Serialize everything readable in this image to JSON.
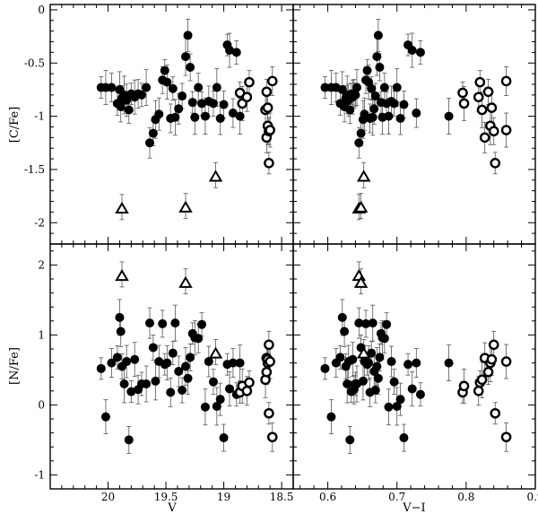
{
  "chart_data": {
    "type": "scatter",
    "layout": "2x2 grid, shared axes",
    "grid": false,
    "panel_labels": {
      "top_left": {
        "ylabel": "[C/Fe]",
        "xlabel": ""
      },
      "top_right": {
        "ylabel": "",
        "xlabel": ""
      },
      "bottom_left": {
        "ylabel": "[N/Fe]",
        "xlabel": "V"
      },
      "bottom_right": {
        "ylabel": "",
        "xlabel": "V−I"
      }
    },
    "axes": {
      "V": {
        "range": [
          20.5,
          18.4
        ],
        "inverted": true,
        "ticks": [
          "20",
          "19.5",
          "19",
          "18.5"
        ],
        "tick_values": [
          20,
          19.5,
          19,
          18.5
        ],
        "minor_step": 0.1
      },
      "VI": {
        "range": [
          0.55,
          0.9
        ],
        "ticks": [
          "0.6",
          "0.7",
          "0.8",
          "0.9"
        ],
        "tick_values": [
          0.6,
          0.7,
          0.8,
          0.9
        ],
        "minor_step": 0.02
      },
      "CFe": {
        "range": [
          -2.2,
          0.05
        ],
        "ticks": [
          "0",
          "-0.5",
          "-1",
          "-1.5",
          "-2"
        ],
        "tick_values": [
          0,
          -0.5,
          -1,
          -1.5,
          -2
        ],
        "minor_step": 0.1
      },
      "NFe": {
        "range": [
          -1.2,
          2.3
        ],
        "ticks": [
          "2",
          "1",
          "0",
          "-1"
        ],
        "tick_values": [
          2,
          1,
          0,
          -1
        ],
        "minor_step": 0.2
      }
    },
    "series": [
      {
        "marker": "filled-circle",
        "stars": [
          {
            "V": 20.06,
            "VI": 0.596,
            "C": -0.73,
            "N": 0.52
          },
          {
            "V": 20.02,
            "VI": 0.605,
            "C": -0.73,
            "N": -0.17
          },
          {
            "V": 19.97,
            "VI": 0.612,
            "C": -0.73,
            "N": 0.6
          },
          {
            "V": 19.92,
            "VI": 0.618,
            "C": -0.88,
            "N": 0.68
          },
          {
            "V": 19.9,
            "VI": 0.621,
            "C": -0.75,
            "N": 1.25
          },
          {
            "V": 19.89,
            "VI": 0.624,
            "C": -0.91,
            "N": 1.05
          },
          {
            "V": 19.88,
            "VI": 0.626,
            "C": -0.83,
            "N": 0.55
          },
          {
            "V": 19.86,
            "VI": 0.628,
            "C": -0.8,
            "N": 0.3
          },
          {
            "V": 19.84,
            "VI": 0.63,
            "C": -0.85,
            "N": 0.62
          },
          {
            "V": 19.82,
            "VI": 0.632,
            "C": -0.94,
            "N": -0.5
          },
          {
            "V": 19.8,
            "VI": 0.634,
            "C": -0.79,
            "N": 0.19
          },
          {
            "V": 19.77,
            "VI": 0.636,
            "C": -0.82,
            "N": 0.65
          },
          {
            "V": 19.74,
            "VI": 0.638,
            "C": -0.79,
            "N": 0.22
          },
          {
            "V": 19.71,
            "VI": 0.64,
            "C": -0.8,
            "N": 0.3
          },
          {
            "V": 19.67,
            "VI": 0.642,
            "C": -0.73,
            "N": 0.3
          },
          {
            "V": 19.64,
            "VI": 0.645,
            "C": -1.25,
            "N": 1.17
          },
          {
            "V": 19.61,
            "VI": 0.648,
            "C": -1.16,
            "N": 0.82
          },
          {
            "V": 19.59,
            "VI": 0.651,
            "C": -1.03,
            "N": 0.34
          },
          {
            "V": 19.56,
            "VI": 0.653,
            "C": -0.98,
            "N": 0.62
          },
          {
            "V": 19.53,
            "VI": 0.655,
            "C": -0.66,
            "N": 1.16
          },
          {
            "V": 19.51,
            "VI": 0.657,
            "C": -0.57,
            "N": 0.58
          },
          {
            "V": 19.49,
            "VI": 0.659,
            "C": -0.68,
            "N": 0.6
          },
          {
            "V": 19.46,
            "VI": 0.661,
            "C": -1.02,
            "N": 0.18
          },
          {
            "V": 19.44,
            "VI": 0.663,
            "C": -0.74,
            "N": 0.74
          },
          {
            "V": 19.42,
            "VI": 0.665,
            "C": -1.01,
            "N": 1.17
          },
          {
            "V": 19.39,
            "VI": 0.667,
            "C": -0.93,
            "N": 0.48
          },
          {
            "V": 19.36,
            "VI": 0.669,
            "C": -0.81,
            "N": 0.21
          },
          {
            "V": 19.33,
            "VI": 0.671,
            "C": -0.44,
            "N": 0.55
          },
          {
            "V": 19.31,
            "VI": 0.673,
            "C": -0.24,
            "N": 0.38
          },
          {
            "V": 19.29,
            "VI": 0.675,
            "C": -0.54,
            "N": 0.68
          },
          {
            "V": 19.27,
            "VI": 0.677,
            "C": -0.87,
            "N": 1.02
          },
          {
            "V": 19.25,
            "VI": 0.679,
            "C": -1.01,
            "N": 0.96
          },
          {
            "V": 19.22,
            "VI": 0.682,
            "C": -0.73,
            "N": 0.95
          },
          {
            "V": 19.19,
            "VI": 0.685,
            "C": -0.88,
            "N": 1.15
          },
          {
            "V": 19.16,
            "VI": 0.688,
            "C": -1.0,
            "N": -0.03
          },
          {
            "V": 19.13,
            "VI": 0.692,
            "C": -0.86,
            "N": 0.62
          },
          {
            "V": 19.09,
            "VI": 0.696,
            "C": -0.88,
            "N": 0.33
          },
          {
            "V": 19.06,
            "VI": 0.7,
            "C": -0.73,
            "N": -0.02
          },
          {
            "V": 19.03,
            "VI": 0.705,
            "C": -1.02,
            "N": 0.08
          },
          {
            "V": 19.0,
            "VI": 0.71,
            "C": -0.89,
            "N": -0.47
          },
          {
            "V": 18.97,
            "VI": 0.716,
            "C": -0.33,
            "N": 0.58
          },
          {
            "V": 18.95,
            "VI": 0.722,
            "C": -0.38,
            "N": 0.23
          },
          {
            "V": 18.92,
            "VI": 0.728,
            "C": -0.97,
            "N": 0.6
          },
          {
            "V": 18.89,
            "VI": 0.734,
            "C": -0.4,
            "N": 0.15
          },
          {
            "V": 18.86,
            "VI": 0.775,
            "C": -1.0,
            "N": 0.6
          }
        ]
      },
      {
        "marker": "open-circle",
        "stars": [
          {
            "V": 18.86,
            "VI": 0.795,
            "C": -0.78,
            "N": 0.18
          },
          {
            "V": 18.84,
            "VI": 0.797,
            "C": -0.88,
            "N": 0.27
          },
          {
            "V": 18.8,
            "VI": 0.818,
            "C": -0.82,
            "N": 0.2
          },
          {
            "V": 18.78,
            "VI": 0.82,
            "C": -0.68,
            "N": 0.32
          },
          {
            "V": 18.64,
            "VI": 0.823,
            "C": -0.94,
            "N": 0.36
          },
          {
            "V": 18.63,
            "VI": 0.827,
            "C": -1.2,
            "N": 0.67
          },
          {
            "V": 18.63,
            "VI": 0.832,
            "C": -0.77,
            "N": 0.47
          },
          {
            "V": 18.62,
            "VI": 0.835,
            "C": -1.09,
            "N": 0.6
          },
          {
            "V": 18.62,
            "VI": 0.837,
            "C": -0.92,
            "N": 0.65
          },
          {
            "V": 18.61,
            "VI": 0.84,
            "C": -1.14,
            "N": 0.86
          },
          {
            "V": 18.61,
            "VI": 0.842,
            "C": -1.44,
            "N": -0.12
          },
          {
            "V": 18.6,
            "VI": 0.858,
            "C": -1.13,
            "N": 0.62
          },
          {
            "V": 18.58,
            "VI": 0.858,
            "C": -0.67,
            "N": -0.46
          }
        ]
      },
      {
        "marker": "open-triangle",
        "stars": [
          {
            "V": 19.88,
            "VI": 0.645,
            "C": -1.87,
            "N": 1.84
          },
          {
            "V": 19.33,
            "VI": 0.648,
            "C": -1.86,
            "N": 1.74
          },
          {
            "V": 19.07,
            "VI": 0.652,
            "C": -1.57,
            "N": 0.73
          }
        ]
      }
    ]
  }
}
